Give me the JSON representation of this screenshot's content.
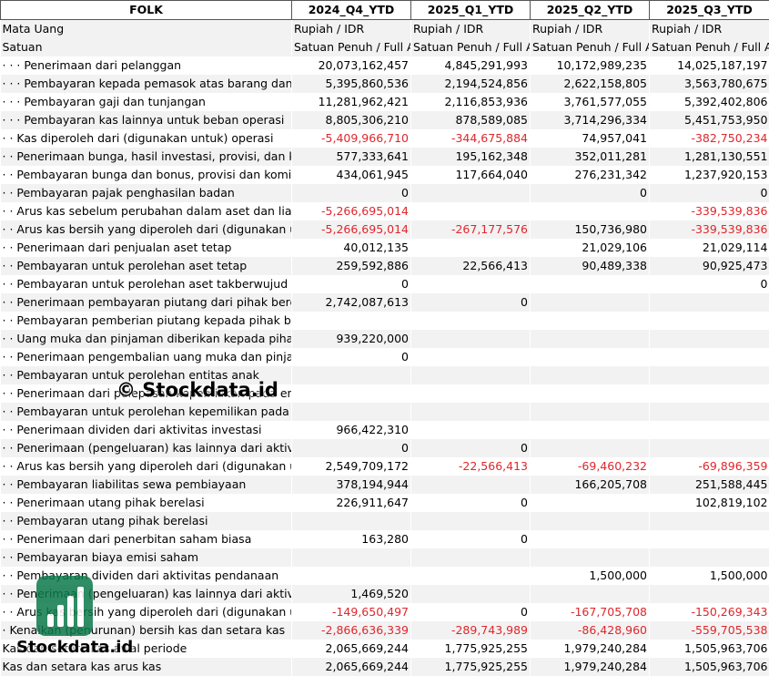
{
  "header": [
    "FOLK",
    "2024_Q4_YTD",
    "2025_Q1_YTD",
    "2025_Q2_YTD",
    "2025_Q3_YTD"
  ],
  "meta": [
    {
      "label": "Mata Uang",
      "values": [
        "Rupiah / IDR",
        "Rupiah / IDR",
        "Rupiah / IDR",
        "Rupiah / IDR"
      ]
    },
    {
      "label": "Satuan",
      "values": [
        "Satuan Penuh / Full Amount",
        "Satuan Penuh / Full Amount",
        "Satuan Penuh / Full Amount",
        "Satuan Penuh / Full Amount"
      ]
    }
  ],
  "rows": [
    {
      "label": "· · · Penerimaan dari pelanggan",
      "values": [
        "20,073,162,457",
        "4,845,291,993",
        "10,172,989,235",
        "14,025,187,197"
      ]
    },
    {
      "label": "· · · Pembayaran kepada pemasok atas barang dan jasa",
      "values": [
        "5,395,860,536",
        "2,194,524,856",
        "2,622,158,805",
        "3,563,780,675"
      ]
    },
    {
      "label": "· · · Pembayaran gaji dan tunjangan",
      "values": [
        "11,281,962,421",
        "2,116,853,936",
        "3,761,577,055",
        "5,392,402,806"
      ]
    },
    {
      "label": "· · · Pembayaran kas lainnya untuk beban operasi",
      "values": [
        "8,805,306,210",
        "878,589,085",
        "3,714,296,334",
        "5,451,753,950"
      ]
    },
    {
      "label": "· · Kas diperoleh dari (digunakan untuk) operasi",
      "values": [
        "-5,409,966,710",
        "-344,675,884",
        "74,957,041",
        "-382,750,234"
      ]
    },
    {
      "label": "· · Penerimaan bunga, hasil investasi, provisi, dan komisi",
      "values": [
        "577,333,641",
        "195,162,348",
        "352,011,281",
        "1,281,130,551"
      ]
    },
    {
      "label": "· · Pembayaran bunga dan bonus, provisi dan komisi",
      "values": [
        "434,061,945",
        "117,664,040",
        "276,231,342",
        "1,237,920,153"
      ]
    },
    {
      "label": "· · Pembayaran pajak penghasilan badan",
      "values": [
        "0",
        "",
        "0",
        "0"
      ]
    },
    {
      "label": "· · Arus kas sebelum perubahan dalam aset dan liabilitas",
      "values": [
        "-5,266,695,014",
        "",
        "",
        "-339,539,836"
      ]
    },
    {
      "label": "· · Arus kas bersih yang diperoleh dari (digunakan untuk)",
      "values": [
        "-5,266,695,014",
        "-267,177,576",
        "150,736,980",
        "-339,539,836"
      ]
    },
    {
      "label": "· · Penerimaan dari penjualan aset tetap",
      "values": [
        "40,012,135",
        "",
        "21,029,106",
        "21,029,114"
      ]
    },
    {
      "label": "· · Pembayaran untuk perolehan aset tetap",
      "values": [
        "259,592,886",
        "22,566,413",
        "90,489,338",
        "90,925,473"
      ]
    },
    {
      "label": "· · Pembayaran untuk perolehan aset takberwujud",
      "values": [
        "0",
        "",
        "",
        "0"
      ]
    },
    {
      "label": "· · Penerimaan pembayaran piutang dari pihak berelasi",
      "values": [
        "2,742,087,613",
        "0",
        "",
        ""
      ]
    },
    {
      "label": "· · Pembayaran pemberian piutang kepada pihak berelasi",
      "values": [
        "",
        "",
        "",
        ""
      ]
    },
    {
      "label": "· · Uang muka dan pinjaman diberikan kepada pihak",
      "values": [
        "939,220,000",
        "",
        "",
        ""
      ]
    },
    {
      "label": "· · Penerimaan pengembalian uang muka dan pinjaman",
      "values": [
        "0",
        "",
        "",
        ""
      ]
    },
    {
      "label": "· · Pembayaran untuk perolehan entitas anak",
      "values": [
        "",
        "",
        "",
        ""
      ]
    },
    {
      "label": "· · Penerimaan dari pelepasan kepemilikan pada entitas asosiasi",
      "values": [
        "",
        "",
        "",
        ""
      ]
    },
    {
      "label": "· · Pembayaran untuk perolehan kepemilikan pada entitas asosiasi",
      "values": [
        "",
        "",
        "",
        ""
      ]
    },
    {
      "label": "· · Penerimaan dividen dari aktivitas investasi",
      "values": [
        "966,422,310",
        "",
        "",
        ""
      ]
    },
    {
      "label": "· · Penerimaan (pengeluaran) kas lainnya dari aktivitas",
      "values": [
        "0",
        "0",
        "",
        ""
      ]
    },
    {
      "label": "· · Arus kas bersih yang diperoleh dari (digunakan untuk)",
      "values": [
        "2,549,709,172",
        "-22,566,413",
        "-69,460,232",
        "-69,896,359"
      ]
    },
    {
      "label": "· · Pembayaran liabilitas sewa pembiayaan",
      "values": [
        "378,194,944",
        "",
        "166,205,708",
        "251,588,445"
      ]
    },
    {
      "label": "· · Penerimaan utang pihak berelasi",
      "values": [
        "226,911,647",
        "0",
        "",
        "102,819,102"
      ]
    },
    {
      "label": "· · Pembayaran utang pihak berelasi",
      "values": [
        "",
        "",
        "",
        ""
      ]
    },
    {
      "label": "· · Penerimaan dari penerbitan saham biasa",
      "values": [
        "163,280",
        "0",
        "",
        ""
      ]
    },
    {
      "label": "· · Pembayaran biaya emisi saham",
      "values": [
        "",
        "",
        "",
        ""
      ]
    },
    {
      "label": "· · Pembayaran dividen dari aktivitas pendanaan",
      "values": [
        "",
        "",
        "1,500,000",
        "1,500,000"
      ]
    },
    {
      "label": "· · Penerimaan (pengeluaran) kas lainnya dari aktivitas",
      "values": [
        "1,469,520",
        "",
        "",
        ""
      ]
    },
    {
      "label": "· · Arus kas bersih yang diperoleh dari (digunakan untuk)",
      "values": [
        "-149,650,497",
        "0",
        "-167,705,708",
        "-150,269,343"
      ]
    },
    {
      "label": "· Kenaikan (penurunan) bersih kas dan setara kas",
      "values": [
        "-2,866,636,339",
        "-289,743,989",
        "-86,428,960",
        "-559,705,538"
      ]
    },
    {
      "label": "Kas dan setara kas awal periode",
      "values": [
        "2,065,669,244",
        "1,775,925,255",
        "1,979,240,284",
        "1,505,963,706"
      ]
    },
    {
      "label": "Kas dan setara kas arus kas",
      "values": [
        "2,065,669,244",
        "1,775,925,255",
        "1,979,240,284",
        "1,505,963,706"
      ]
    }
  ],
  "watermark": "© Stockdata.id",
  "logo_text": "Stockdata.id",
  "colors": {
    "negative": "#e0262b",
    "logo": "#0d7a4b",
    "alt_row": "#f2f2f2"
  }
}
